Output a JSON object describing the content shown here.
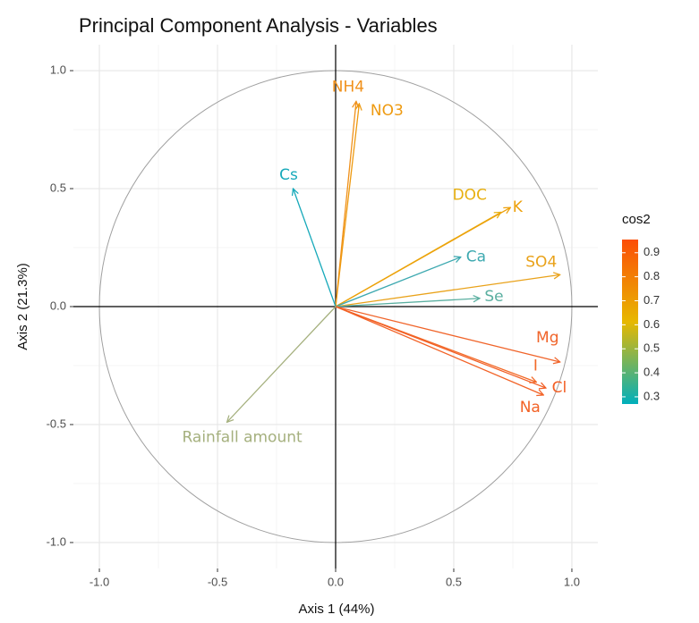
{
  "chart_data": {
    "type": "pca-variables",
    "title": "Principal Component Analysis - Variables",
    "xlabel": "Axis 1 (44%)",
    "ylabel": "Axis 2 (21.3%)",
    "xlim": [
      -1.11,
      1.11
    ],
    "ylim": [
      -1.11,
      1.11
    ],
    "xticks": [
      -1.0,
      -0.5,
      0.0,
      0.5,
      1.0
    ],
    "yticks": [
      -1.0,
      -0.5,
      0.0,
      0.5,
      1.0
    ],
    "xtick_labels": [
      "-1.0",
      "-0.5",
      "0.0",
      "0.5",
      "1.0"
    ],
    "ytick_labels": [
      "-1.0",
      "-0.5",
      "0.0",
      "0.5",
      "1.0"
    ],
    "grid": true,
    "series": [
      {
        "name": "NH4",
        "color": "#F0901A",
        "x": 0.087,
        "y": 0.87
      },
      {
        "name": "NO3",
        "color": "#EE9A10",
        "x": 0.1,
        "y": 0.86
      },
      {
        "name": "Cs",
        "color": "#17A9BA",
        "x": -0.18,
        "y": 0.5
      },
      {
        "name": "DOC",
        "color": "#E8B010",
        "x": 0.7,
        "y": 0.4
      },
      {
        "name": "K",
        "color": "#EDA00A",
        "x": 0.74,
        "y": 0.42
      },
      {
        "name": "Ca",
        "color": "#3DA9B0",
        "x": 0.53,
        "y": 0.21
      },
      {
        "name": "SO4",
        "color": "#E9A21A",
        "x": 0.95,
        "y": 0.135
      },
      {
        "name": "Se",
        "color": "#5AAFA0",
        "x": 0.61,
        "y": 0.035
      },
      {
        "name": "Mg",
        "color": "#F0642A",
        "x": 0.95,
        "y": -0.235
      },
      {
        "name": "I",
        "color": "#F26A28",
        "x": 0.85,
        "y": -0.32
      },
      {
        "name": "Cl",
        "color": "#F25E24",
        "x": 0.89,
        "y": -0.345
      },
      {
        "name": "Na",
        "color": "#F26226",
        "x": 0.88,
        "y": -0.375
      },
      {
        "name": "Rainfall amount",
        "color": "#A5B07E",
        "x": -0.46,
        "y": -0.49
      }
    ],
    "legend": {
      "title": "cos2",
      "lim": [
        0.27,
        0.955
      ],
      "ticks": [
        0.3,
        0.4,
        0.5,
        0.6,
        0.7,
        0.8,
        0.9
      ],
      "colors": [
        "#00AFBB",
        "#E7B800",
        "#FC4E07"
      ]
    }
  }
}
